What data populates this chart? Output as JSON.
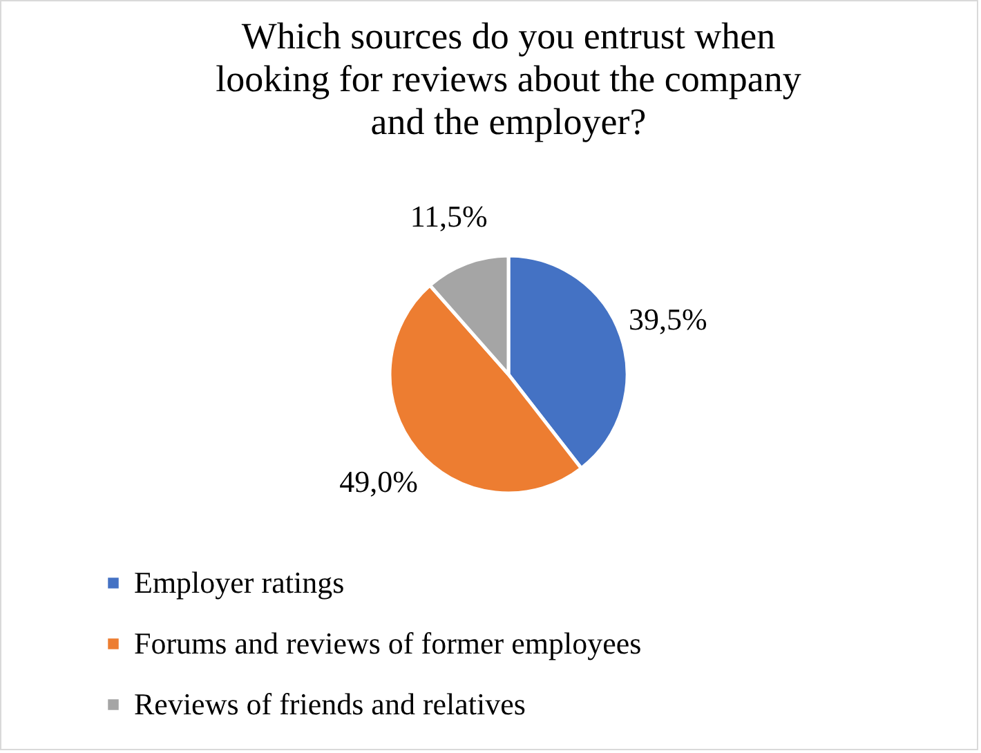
{
  "chart_data": {
    "type": "pie",
    "title": "Which sources do you entrust when looking for reviews about the company and the employer?",
    "categories": [
      "Employer ratings",
      "Forums and reviews of former employees",
      "Reviews of friends and relatives"
    ],
    "values": [
      39.5,
      49.0,
      11.5
    ],
    "colors": [
      "#4472c4",
      "#ed7d31",
      "#a5a5a5"
    ],
    "value_labels": [
      "39,5%",
      "49,0%",
      "11,5%"
    ],
    "legend": "bottom"
  }
}
